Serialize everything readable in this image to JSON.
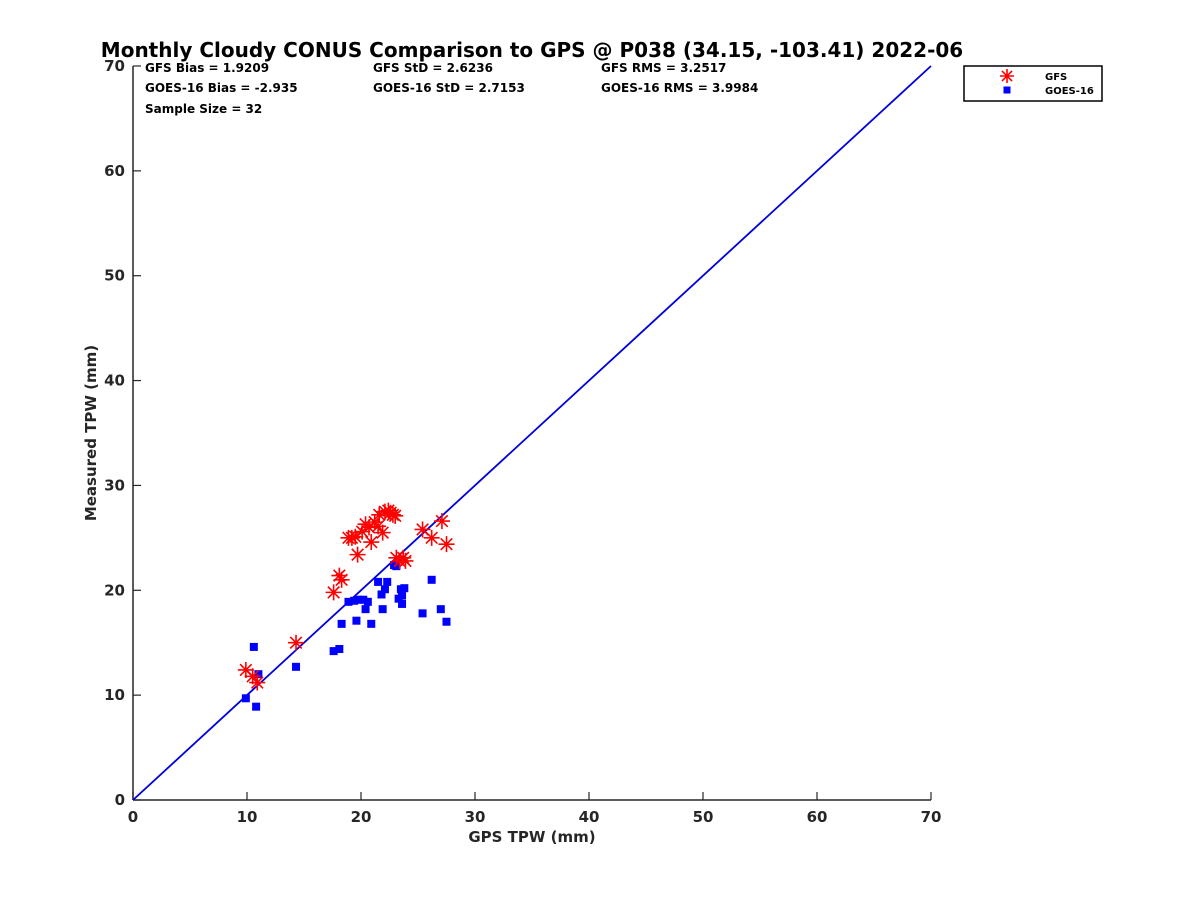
{
  "chart_data": {
    "type": "scatter",
    "title": "Monthly Cloudy CONUS Comparison to GPS @ P038 (34.15, -103.41) 2022-06",
    "xlabel": "GPS TPW (mm)",
    "ylabel": "Measured TPW (mm)",
    "xlim": [
      0,
      70
    ],
    "ylim": [
      0,
      70
    ],
    "xticks": [
      "0",
      "10",
      "20",
      "30",
      "40",
      "50",
      "60",
      "70"
    ],
    "yticks": [
      "0",
      "10",
      "20",
      "30",
      "40",
      "50",
      "60",
      "70"
    ],
    "grid": false,
    "legend_position": "top-right",
    "reference_line": {
      "x": [
        0,
        70
      ],
      "y": [
        0,
        70
      ],
      "color": "#0000dd"
    },
    "stats": [
      "GFS Bias = 1.9209",
      "GFS StD = 2.6236",
      "GFS RMS = 3.2517",
      "GOES-16 Bias = -2.935",
      "GOES-16 StD = 2.7153",
      "GOES-16 RMS = 3.9984",
      "Sample Size = 32"
    ],
    "series": [
      {
        "name": "GFS",
        "marker": "asterisk",
        "color": "#ff0000",
        "x": [
          9.9,
          10.5,
          10.9,
          14.3,
          17.6,
          18.1,
          18.3,
          18.9,
          19.5,
          19.7,
          20.1,
          20.4,
          20.7,
          20.9,
          21.2,
          21.6,
          21.9,
          22.1,
          22.4,
          22.8,
          23.1,
          23.4,
          23.7,
          23.9,
          25.4,
          26.2,
          27.1,
          27.5,
          19.2,
          21.5,
          22.6,
          23.0
        ],
        "y": [
          12.4,
          11.8,
          11.2,
          15.0,
          19.8,
          21.4,
          21.0,
          25.0,
          25.1,
          23.4,
          25.6,
          26.3,
          26.0,
          24.6,
          26.5,
          27.2,
          25.5,
          27.5,
          27.6,
          27.2,
          23.1,
          22.8,
          23.1,
          22.8,
          25.8,
          25.0,
          26.6,
          24.4,
          25.0,
          26.1,
          27.4,
          27.1
        ]
      },
      {
        "name": "GOES-16",
        "marker": "square",
        "color": "#0000ff",
        "x": [
          9.9,
          10.6,
          10.8,
          11.0,
          14.3,
          17.6,
          18.1,
          18.3,
          18.9,
          19.6,
          19.8,
          20.2,
          20.4,
          20.9,
          21.5,
          21.8,
          21.9,
          22.1,
          22.3,
          23.1,
          23.3,
          23.5,
          23.6,
          23.8,
          25.4,
          26.2,
          27.0,
          27.5,
          23.6,
          22.9,
          20.6,
          19.4
        ],
        "y": [
          9.7,
          14.6,
          8.9,
          12.0,
          12.7,
          14.2,
          14.4,
          16.8,
          18.9,
          17.1,
          19.1,
          19.1,
          18.2,
          16.8,
          20.8,
          19.6,
          18.2,
          20.1,
          20.8,
          22.3,
          19.2,
          20.1,
          18.7,
          20.2,
          17.8,
          21.0,
          18.2,
          17.0,
          19.5,
          22.4,
          18.9,
          19.0
        ]
      }
    ]
  }
}
